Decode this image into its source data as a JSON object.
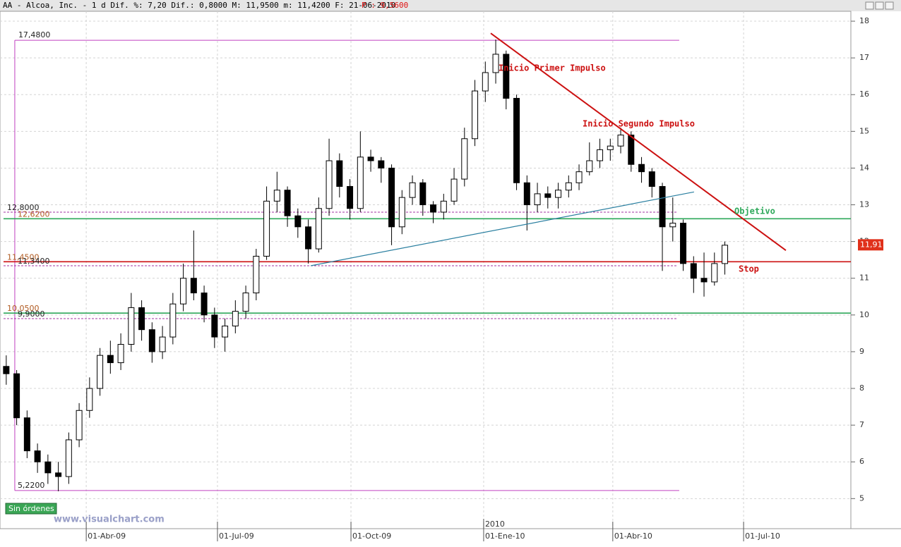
{
  "chart_data": {
    "type": "candlestick",
    "title": "AA - Alcoa, Inc. -  1 d Dif. %: 7,20 Dif.: 0,8000 M: 11,9500 m: 11,4200 F: 21-06-2010",
    "title_price": "P : 9,5600",
    "year_marker": {
      "value": 232.2,
      "label": "2010"
    },
    "x": [
      3,
      8,
      13,
      18,
      23,
      28,
      33,
      38,
      43,
      48,
      53,
      58,
      63,
      68,
      73,
      78,
      83,
      88,
      93,
      98,
      103,
      108,
      113,
      118,
      123,
      128,
      133,
      138,
      143,
      148,
      153,
      158,
      163,
      168,
      173,
      178,
      183,
      188,
      193,
      198,
      203,
      208,
      213,
      218,
      223,
      228,
      233,
      238,
      243,
      248,
      253,
      258,
      263,
      268,
      273,
      278,
      283,
      288,
      293,
      298,
      303,
      308,
      313,
      318,
      323,
      328,
      333,
      338,
      343,
      348
    ],
    "open": [
      8.6,
      8.4,
      7.2,
      6.3,
      6.0,
      5.7,
      5.6,
      6.6,
      7.4,
      8.0,
      8.9,
      8.7,
      9.2,
      10.2,
      9.6,
      9.0,
      9.4,
      10.3,
      11.0,
      10.6,
      10.0,
      9.4,
      9.7,
      10.1,
      10.6,
      11.6,
      13.1,
      13.4,
      12.7,
      12.4,
      11.8,
      12.9,
      14.2,
      13.5,
      12.9,
      14.3,
      14.2,
      14.0,
      12.4,
      13.2,
      13.6,
      13.0,
      12.8,
      13.1,
      13.7,
      14.8,
      16.1,
      16.6,
      17.1,
      15.9,
      13.6,
      13.0,
      13.3,
      13.2,
      13.4,
      13.6,
      13.9,
      14.2,
      14.5,
      14.6,
      14.9,
      14.1,
      13.9,
      13.5,
      12.4,
      12.5,
      11.4,
      11.0,
      10.9,
      11.4
    ],
    "high": [
      8.9,
      8.5,
      7.4,
      6.5,
      6.2,
      6.0,
      6.8,
      7.6,
      8.3,
      9.1,
      9.3,
      9.5,
      10.6,
      10.4,
      9.8,
      9.7,
      10.6,
      11.4,
      12.3,
      10.8,
      10.2,
      9.9,
      10.4,
      10.8,
      11.8,
      13.5,
      13.9,
      13.5,
      12.9,
      12.6,
      13.2,
      14.8,
      14.4,
      13.7,
      15.0,
      14.5,
      14.3,
      14.1,
      13.4,
      13.8,
      13.7,
      13.1,
      13.3,
      14.0,
      15.1,
      16.4,
      16.9,
      17.5,
      17.2,
      16.0,
      13.8,
      13.6,
      13.5,
      13.6,
      13.8,
      14.1,
      14.7,
      14.8,
      14.8,
      15.1,
      15.0,
      14.3,
      14.0,
      13.6,
      13.2,
      12.6,
      11.6,
      11.7,
      11.7,
      12.0
    ],
    "low": [
      8.1,
      7.0,
      6.1,
      5.7,
      5.4,
      5.2,
      5.4,
      6.4,
      7.2,
      7.8,
      8.4,
      8.5,
      9.0,
      9.3,
      8.7,
      8.8,
      9.2,
      10.1,
      10.4,
      9.8,
      9.1,
      9.0,
      9.5,
      9.9,
      10.4,
      11.5,
      12.8,
      12.4,
      12.1,
      11.4,
      11.7,
      12.7,
      13.2,
      12.6,
      12.8,
      13.9,
      13.6,
      11.9,
      12.2,
      13.0,
      12.7,
      12.5,
      12.6,
      13.0,
      13.5,
      14.6,
      15.8,
      16.3,
      15.6,
      13.4,
      12.3,
      12.8,
      12.9,
      12.9,
      13.2,
      13.4,
      13.8,
      14.0,
      14.2,
      14.4,
      13.9,
      13.6,
      13.2,
      11.2,
      12.0,
      11.2,
      10.6,
      10.5,
      10.8,
      11.1
    ],
    "close": [
      8.4,
      7.2,
      6.3,
      6.0,
      5.7,
      5.6,
      6.6,
      7.4,
      8.0,
      8.9,
      8.7,
      9.2,
      10.2,
      9.6,
      9.0,
      9.4,
      10.3,
      11.0,
      10.6,
      10.0,
      9.4,
      9.7,
      10.1,
      10.6,
      11.6,
      13.1,
      13.4,
      12.7,
      12.4,
      11.8,
      12.9,
      14.2,
      13.5,
      12.9,
      14.3,
      14.2,
      14.0,
      12.4,
      13.2,
      13.6,
      13.0,
      12.8,
      13.1,
      13.7,
      14.8,
      16.1,
      16.6,
      17.1,
      15.9,
      13.6,
      13.0,
      13.3,
      13.2,
      13.4,
      13.6,
      13.9,
      14.2,
      14.5,
      14.6,
      14.9,
      14.1,
      13.9,
      13.5,
      12.4,
      12.5,
      11.4,
      11.0,
      10.9,
      11.4,
      11.9
    ],
    "xlim": [
      0,
      408.5
    ],
    "ylim": [
      4.2,
      18.5
    ],
    "yticks": [
      5,
      6,
      7,
      8,
      9,
      10,
      11,
      12,
      13,
      14,
      15,
      16,
      17,
      18
    ],
    "xticks": [
      {
        "value": 41.4,
        "label": "01-Abr-09"
      },
      {
        "value": 104.4,
        "label": "01-Jul-09"
      },
      {
        "value": 168.5,
        "label": "01-Oct-09"
      },
      {
        "value": 232.2,
        "label": "01-Ene-10"
      },
      {
        "value": 294.2,
        "label": "01-Abr-10"
      },
      {
        "value": 357,
        "label": "01-Jul-10"
      }
    ],
    "grid": true,
    "levels": [
      {
        "value": 12.8,
        "label": "12,8000",
        "color": "#a030a0",
        "style": "dashed"
      },
      {
        "value": 12.62,
        "label": "12,6200",
        "color": "#2ea85a",
        "style": "solid"
      },
      {
        "value": 11.45,
        "label": "11,4500",
        "color": "#cc1111",
        "style": "solid"
      },
      {
        "value": 11.34,
        "label": "11,3400",
        "color": "#a030a0",
        "style": "dashed"
      },
      {
        "value": 10.05,
        "label": "10,0500",
        "color": "#2ea85a",
        "style": "solid"
      },
      {
        "value": 9.9,
        "label": "9,9000",
        "color": "#a030a0",
        "style": "dashed"
      }
    ],
    "range_box": {
      "high": {
        "value": 17.48,
        "label": "17,4800"
      },
      "low": {
        "value": 5.22,
        "label": "5,2200"
      },
      "x": [
        7.1,
        326.1
      ],
      "color": "#c040c0"
    },
    "trendlines": [
      {
        "x": [
          235.6,
          377.3
        ],
        "y": [
          17.67,
          11.76
        ],
        "color": "#cc1111"
      },
      {
        "x": [
          149.2,
          333.2
        ],
        "y": [
          11.34,
          13.35
        ],
        "color": "#2a7fa0"
      }
    ],
    "annotations": [
      {
        "text": "Inicio Primer Impulso",
        "color": "#cc1111"
      },
      {
        "text": "Inicio Segundo Impulso",
        "color": "#cc1111"
      },
      {
        "text": "Objetivo",
        "color": "#2ea85a"
      },
      {
        "text": "Stop",
        "color": "#cc1111"
      }
    ],
    "last_price": {
      "value": 11.91,
      "label": "11,91"
    },
    "status": "Sin órdenes",
    "watermark": "www.visualchart.com"
  }
}
